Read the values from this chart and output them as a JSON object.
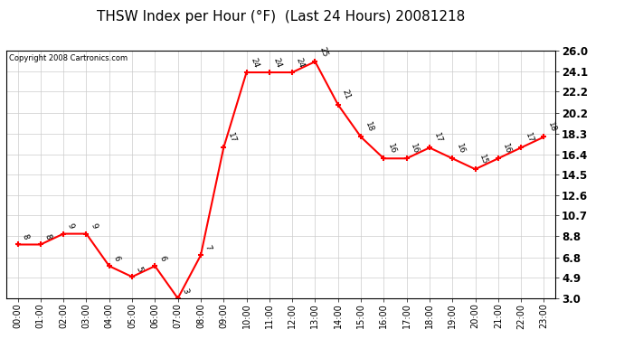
{
  "title": "THSW Index per Hour (°F)  (Last 24 Hours) 20081218",
  "copyright": "Copyright 2008 Cartronics.com",
  "hours": [
    "00:00",
    "01:00",
    "02:00",
    "03:00",
    "04:00",
    "05:00",
    "06:00",
    "07:00",
    "08:00",
    "09:00",
    "10:00",
    "11:00",
    "12:00",
    "13:00",
    "14:00",
    "15:00",
    "16:00",
    "17:00",
    "18:00",
    "19:00",
    "20:00",
    "21:00",
    "22:00",
    "23:00"
  ],
  "values": [
    8,
    8,
    9,
    9,
    6,
    5,
    6,
    3,
    7,
    17,
    24,
    24,
    24,
    25,
    21,
    18,
    16,
    16,
    17,
    16,
    15,
    16,
    17,
    18
  ],
  "line_color": "#ff0000",
  "marker_color": "#ff0000",
  "bg_color": "#ffffff",
  "grid_color": "#cccccc",
  "ylim": [
    3.0,
    26.0
  ],
  "yticks": [
    3.0,
    4.9,
    6.8,
    8.8,
    10.7,
    12.6,
    14.5,
    16.4,
    18.3,
    20.2,
    22.2,
    24.1,
    26.0
  ],
  "title_fontsize": 11,
  "label_fontsize": 7,
  "annotation_fontsize": 6.5,
  "plot_bg": "#ffffff"
}
